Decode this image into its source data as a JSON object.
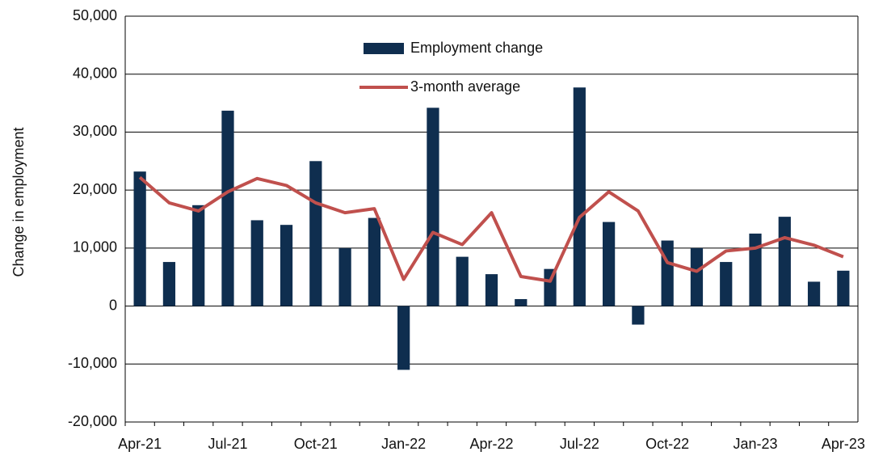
{
  "chart_data": {
    "type": "bar_line",
    "y_label": "Change in employment",
    "categories": [
      "Apr-21",
      null,
      null,
      "Jul-21",
      null,
      null,
      "Oct-21",
      null,
      null,
      "Jan-22",
      null,
      null,
      "Apr-22",
      null,
      null,
      "Jul-22",
      null,
      null,
      "Oct-22",
      null,
      null,
      "Jan-23",
      null,
      null,
      "Apr-23"
    ],
    "series": [
      {
        "name": "Employment change",
        "type": "bar",
        "color": "#0f2e4f",
        "values": [
          23200,
          7600,
          17400,
          33700,
          14800,
          14000,
          25000,
          10000,
          15200,
          -11000,
          34200,
          8500,
          5500,
          1200,
          6400,
          37700,
          14500,
          -3200,
          11300,
          10000,
          7600,
          12500,
          15400,
          4200,
          6100
        ]
      },
      {
        "name": "3-month average",
        "type": "line",
        "color": "#c0504d",
        "values": [
          22200,
          17800,
          16400,
          19700,
          22000,
          20800,
          17800,
          16100,
          16800,
          4600,
          12700,
          10600,
          16100,
          5100,
          4300,
          15300,
          19700,
          16400,
          7500,
          6000,
          9500,
          10000,
          11800,
          10500,
          8500
        ]
      }
    ],
    "ylim": [
      -20000,
      50000
    ],
    "yticks": [
      {
        "value": -20000,
        "label": "-20,000"
      },
      {
        "value": -10000,
        "label": "-10,000"
      },
      0,
      {
        "value": 10000,
        "label": "10,000"
      },
      {
        "value": 20000,
        "label": "20,000"
      },
      {
        "value": 30000,
        "label": "30,000"
      },
      {
        "value": 40000,
        "label": "40,000"
      },
      {
        "value": 50000,
        "label": "50,000"
      }
    ],
    "grid": true
  }
}
